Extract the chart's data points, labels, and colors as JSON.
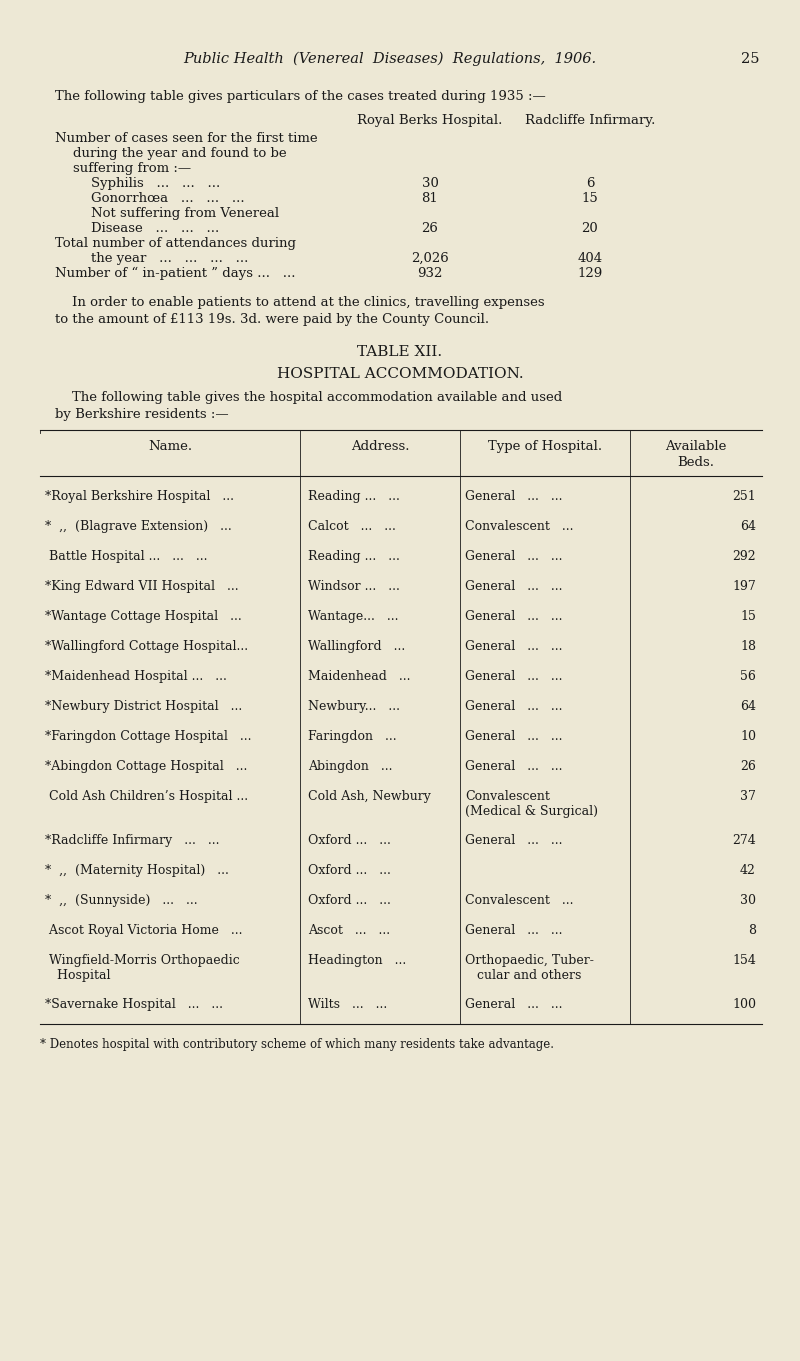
{
  "background_color": "#ede8d5",
  "text_color": "#1a1a1a",
  "page_header": "Public Health  (Venereal  Diseases)  Regulations,  1906.",
  "page_number": "25",
  "intro_text": "The following table gives particulars of the cases treated during 1935 :—",
  "col_headers": [
    "Royal Berks Hospital.",
    "Radcliffe Infirmary."
  ],
  "stats_rows": [
    {
      "label": "Number of cases seen for the first time",
      "indent": 0,
      "val1": null,
      "val2": null
    },
    {
      "label": "during the year and found to be",
      "indent": 1,
      "val1": null,
      "val2": null
    },
    {
      "label": "suffering from :—",
      "indent": 1,
      "val1": null,
      "val2": null
    },
    {
      "label": "Syphilis   ...   ...   ...",
      "indent": 2,
      "val1": "30",
      "val2": "6"
    },
    {
      "label": "Gonorrhœa   ...   ...   ...",
      "indent": 2,
      "val1": "81",
      "val2": "15"
    },
    {
      "label": "Not suffering from Venereal",
      "indent": 2,
      "val1": null,
      "val2": null
    },
    {
      "label": "Disease   ...   ...   ...",
      "indent": 2,
      "val1": "26",
      "val2": "20"
    },
    {
      "label": "Total number of attendances during",
      "indent": 0,
      "val1": null,
      "val2": null
    },
    {
      "label": "the year   ...   ...   ...   ...",
      "indent": 2,
      "val1": "2,026",
      "val2": "404"
    },
    {
      "label": "Number of “ in-patient ” days ...   ...",
      "indent": 0,
      "val1": "932",
      "val2": "129"
    }
  ],
  "para1": "    In order to enable patients to attend at the clinics, travelling expenses",
  "para2": "to the amount of £113 19s. 3d. were paid by the County Council.",
  "table_title1": "TABLE XII.",
  "table_title2": "HOSPITAL ACCOMMODATION.",
  "table_intro1": "    The following table gives the hospital accommodation available and used",
  "table_intro2": "by Berkshire residents :—",
  "table_col_headers": [
    "Name.",
    "Address.",
    "Type of Hospital.",
    "Available\nBeds."
  ],
  "table_rows": [
    [
      "*Royal Berkshire Hospital   ...",
      "Reading ...   ...",
      "General   ...   ...",
      "251"
    ],
    [
      "*  ,,  (Blagrave Extension)   ...",
      "Calcot   ...   ...",
      "Convalescent   ...",
      "64"
    ],
    [
      " Battle Hospital ...   ...   ...",
      "Reading ...   ...",
      "General   ...   ...",
      "292"
    ],
    [
      "*King Edward VII Hospital   ...",
      "Windsor ...   ...",
      "General   ...   ...",
      "197"
    ],
    [
      "*Wantage Cottage Hospital   ...",
      "Wantage...   ...",
      "General   ...   ...",
      "15"
    ],
    [
      "*Wallingford Cottage Hospital...",
      "Wallingford   ...",
      "General   ...   ...",
      "18"
    ],
    [
      "*Maidenhead Hospital ...   ...",
      "Maidenhead   ...",
      "General   ...   ...",
      "56"
    ],
    [
      "*Newbury District Hospital   ...",
      "Newbury...   ...",
      "General   ...   ...",
      "64"
    ],
    [
      "*Faringdon Cottage Hospital   ...",
      "Faringdon   ...",
      "General   ...   ...",
      "10"
    ],
    [
      "*Abingdon Cottage Hospital   ...",
      "Abingdon   ...",
      "General   ...   ...",
      "26"
    ],
    [
      " Cold Ash Children’s Hospital ...",
      "Cold Ash, Newbury",
      "Convalescent\n(Medical & Surgical)",
      "37"
    ],
    [
      "*Radcliffe Infirmary   ...   ...",
      "Oxford ...   ...",
      "General   ...   ...",
      "274"
    ],
    [
      "*  ,,  (Maternity Hospital)   ...",
      "Oxford ...   ...",
      "",
      "42"
    ],
    [
      "*  ,,  (Sunnyside)   ...   ...",
      "Oxford ...   ...",
      "Convalescent   ...",
      "30"
    ],
    [
      " Ascot Royal Victoria Home   ...",
      "Ascot   ...   ...",
      "General   ...   ...",
      "8"
    ],
    [
      " Wingfield-Morris Orthopaedic\n   Hospital",
      "Headington   ...",
      "Orthopaedic, Tuber-\n   cular and others",
      "154"
    ],
    [
      "*Savernake Hospital   ...   ...",
      "Wilts   ...   ...",
      "General   ...   ...",
      "100"
    ]
  ],
  "footnote": "* Denotes hospital with contributory scheme of which many residents take advantage."
}
